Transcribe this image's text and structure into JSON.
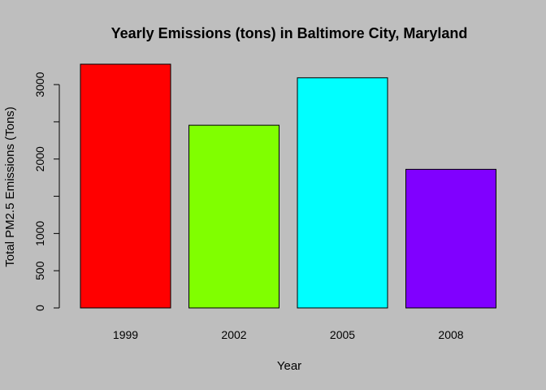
{
  "chart_data": {
    "type": "bar",
    "title": "Yearly Emissions (tons) in Baltimore City, Maryland",
    "xlabel": "Year",
    "ylabel": "Total PM2.5 Emissions (Tons)",
    "categories": [
      "1999",
      "2002",
      "2005",
      "2008"
    ],
    "values": [
      3274,
      2454,
      3091,
      1862
    ],
    "colors": [
      "#ff0000",
      "#80ff00",
      "#00ffff",
      "#8000ff"
    ],
    "ylim": [
      0,
      3274
    ],
    "yticks": [
      0,
      500,
      1000,
      2000,
      3000
    ],
    "grid": false,
    "legend": "none",
    "background": "#bebebe"
  }
}
